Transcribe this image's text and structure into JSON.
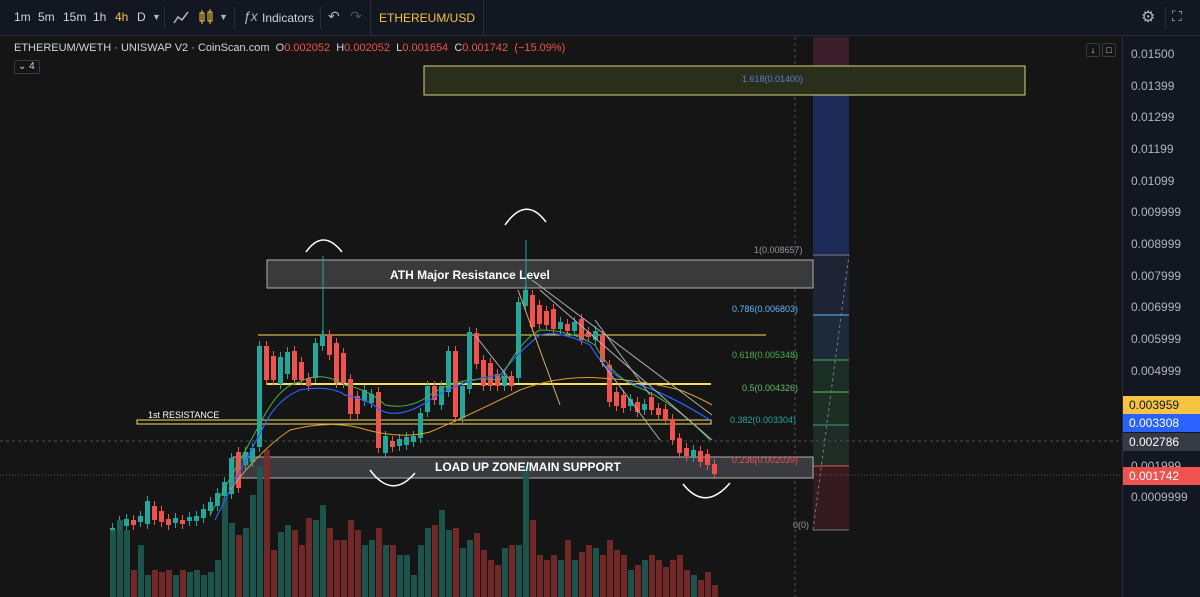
{
  "toolbar": {
    "timeframes": [
      "1m",
      "5m",
      "15m",
      "1h",
      "4h",
      "D"
    ],
    "active_timeframe": "4h",
    "indicators_label": "Indicators",
    "symbol_tab": "ETHEREUM/USD"
  },
  "legend": {
    "title": "ETHEREUM/WETH · UNISWAP V2 · CoinScan.com",
    "open_label": "O",
    "open": "0.002052",
    "high_label": "H",
    "high": "0.002052",
    "low_label": "L",
    "low": "0.001654",
    "close_label": "C",
    "close": "0.001742",
    "change": "(−15.09%)",
    "collapse_count": "4"
  },
  "annotations": {
    "ath": "ATH Major Resistance Level",
    "first_resistance": "1st RESISTANCE",
    "load_zone": "LOAD UP ZONE/MAIN SUPPORT"
  },
  "fib_levels": [
    {
      "label": "1.618(0.01400)",
      "color": "#5b7bd5"
    },
    {
      "label": "1(0.008657)",
      "color": "#9598a1"
    },
    {
      "label": "0.786(0.006803)",
      "color": "#64b5f6"
    },
    {
      "label": "0.618(0.005348)",
      "color": "#4caf50"
    },
    {
      "label": "0.5(0.004326)",
      "color": "#66bb6a"
    },
    {
      "label": "0.382(0.003304)",
      "color": "#26a69a"
    },
    {
      "label": "0.236(0.002039)",
      "color": "#ef5350"
    },
    {
      "label": "0(0)",
      "color": "#9598a1"
    }
  ],
  "price_axis": {
    "labels": [
      "0.01500",
      "0.01399",
      "0.01299",
      "0.01199",
      "0.01099",
      "0.009999",
      "0.008999",
      "0.007999",
      "0.006999",
      "0.005999",
      "0.004999",
      "0.001999",
      "0.0009999"
    ],
    "tags": [
      {
        "value": "0.003959",
        "bg": "#f6c343",
        "fg": "#131722"
      },
      {
        "value": "0.003308",
        "bg": "#2962ff",
        "fg": "#ffffff"
      },
      {
        "value": "0.002786",
        "bg": "#363a45",
        "fg": "#ffffff"
      },
      {
        "value": "0.001742",
        "bg": "#ef5350",
        "fg": "#ffffff"
      }
    ]
  },
  "colors": {
    "up": "#26a69a",
    "down": "#ef5350",
    "yellow_line": "#f6e05e",
    "ma_blue": "#2962ff",
    "ma_green": "#4caf50",
    "ma_orange": "#e0a030"
  },
  "chart_data": {
    "type": "candlestick",
    "series_count": 66,
    "close_last": 0.001742
  }
}
